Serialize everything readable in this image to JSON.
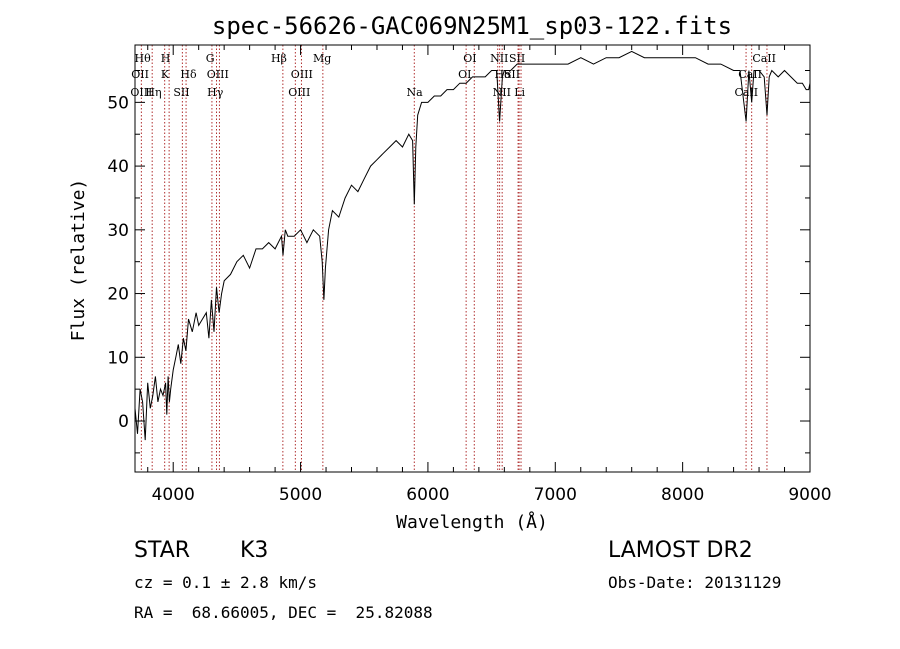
{
  "chart_data": {
    "type": "line",
    "title": "spec-56626-GAC069N25M1_sp03-122.fits",
    "xlabel": "Wavelength (Å)",
    "ylabel": "Flux (relative)",
    "xlim": [
      3700,
      9000
    ],
    "ylim": [
      -8,
      59
    ],
    "xticks": [
      4000,
      5000,
      6000,
      7000,
      8000,
      9000
    ],
    "yticks": [
      0,
      10,
      20,
      30,
      40,
      50
    ],
    "grid": false,
    "series": [
      {
        "x": [
          3700,
          3720,
          3740,
          3760,
          3780,
          3800,
          3820,
          3840,
          3860,
          3880,
          3900,
          3920,
          3940,
          3950,
          3960,
          3970,
          3980,
          4000,
          4020,
          4040,
          4060,
          4080,
          4100,
          4120,
          4150,
          4180,
          4200,
          4230,
          4260,
          4280,
          4300,
          4320,
          4340,
          4360,
          4380,
          4400,
          4450,
          4500,
          4550,
          4600,
          4650,
          4700,
          4750,
          4800,
          4850,
          4862,
          4880,
          4900,
          4950,
          5000,
          5050,
          5100,
          5150,
          5170,
          5183,
          5195,
          5220,
          5250,
          5300,
          5350,
          5400,
          5450,
          5500,
          5550,
          5600,
          5650,
          5700,
          5750,
          5800,
          5850,
          5880,
          5893,
          5905,
          5920,
          5950,
          6000,
          6050,
          6100,
          6150,
          6200,
          6250,
          6300,
          6350,
          6400,
          6450,
          6500,
          6540,
          6563,
          6585,
          6600,
          6650,
          6700,
          6750,
          6800,
          6850,
          6900,
          6950,
          7000,
          7100,
          7200,
          7300,
          7400,
          7500,
          7600,
          7700,
          7800,
          7900,
          8000,
          8100,
          8200,
          8300,
          8400,
          8450,
          8498,
          8520,
          8542,
          8560,
          8600,
          8640,
          8662,
          8680,
          8700,
          8750,
          8800,
          8850,
          8900,
          8940,
          8970,
          8990,
          9000
        ],
        "y": [
          2,
          -2,
          5,
          3,
          -3,
          6,
          2,
          4,
          7,
          3,
          5,
          4,
          6,
          1,
          7,
          3,
          5,
          8,
          10,
          12,
          9,
          13,
          11,
          16,
          14,
          17,
          15,
          16,
          17,
          13,
          19,
          14,
          21,
          17,
          20,
          22,
          23,
          25,
          26,
          24,
          27,
          27,
          28,
          27,
          29,
          26,
          30,
          29,
          29,
          30,
          28,
          30,
          29,
          25,
          19,
          24,
          30,
          33,
          32,
          35,
          37,
          36,
          38,
          40,
          41,
          42,
          43,
          44,
          43,
          45,
          44,
          34,
          43,
          48,
          50,
          50,
          51,
          51,
          52,
          52,
          53,
          53,
          54,
          54,
          54,
          55,
          55,
          47,
          54,
          55,
          55,
          56,
          56,
          56,
          56,
          56,
          56,
          56,
          56,
          57,
          56,
          57,
          57,
          58,
          57,
          57,
          57,
          57,
          57,
          56,
          56,
          55,
          55,
          47,
          55,
          50,
          55,
          55,
          54,
          48,
          54,
          55,
          54,
          55,
          54,
          53,
          53,
          52,
          52,
          53
        ]
      }
    ],
    "line_markers": [
      {
        "w": 3750,
        "top": [
          "Hθ"
        ],
        "bot": [
          "OII",
          "OIII"
        ]
      },
      {
        "w": 3835,
        "top": [
          "Hη"
        ],
        "bot": []
      },
      {
        "w": 3933,
        "top": [
          "K"
        ],
        "bot": []
      },
      {
        "w": 3968,
        "top": [
          "H"
        ],
        "bot": []
      },
      {
        "w": 4072,
        "top": [
          "SII"
        ],
        "bot": []
      },
      {
        "w": 4101,
        "top": [
          "Hδ"
        ],
        "bot": []
      },
      {
        "w": 4304,
        "top": [
          "G"
        ],
        "bot": []
      },
      {
        "w": 4340,
        "top": [
          "Hγ"
        ],
        "bot": []
      },
      {
        "w": 4363,
        "top": [
          "OIII"
        ],
        "bot": []
      },
      {
        "w": 4861,
        "top": [
          "Hβ"
        ],
        "bot": []
      },
      {
        "w": 4959,
        "top": [
          "OIII"
        ],
        "bot": []
      },
      {
        "w": 5007,
        "top": [
          "OIII"
        ],
        "bot": []
      },
      {
        "w": 5175,
        "top": [
          "Mg"
        ],
        "bot": []
      },
      {
        "w": 5893,
        "top": [
          "Na"
        ],
        "bot": []
      },
      {
        "w": 6300,
        "top": [
          "OI"
        ],
        "bot": []
      },
      {
        "w": 6364,
        "top": [
          "OI"
        ],
        "bot": []
      },
      {
        "w": 6548,
        "top": [
          "NII"
        ],
        "bot": []
      },
      {
        "w": 6563,
        "top": [
          "Hα"
        ],
        "bot": []
      },
      {
        "w": 6583,
        "top": [
          "NII"
        ],
        "bot": []
      },
      {
        "w": 6708,
        "top": [
          "Li"
        ],
        "bot": []
      },
      {
        "w": 6716,
        "top": [
          "SII"
        ],
        "bot": []
      },
      {
        "w": 6731,
        "top": [
          "SII"
        ],
        "bot": []
      },
      {
        "w": 8498,
        "top": [
          "CaII"
        ],
        "bot": []
      },
      {
        "w": 8542,
        "top": [
          "CaII"
        ],
        "bot": []
      },
      {
        "w": 8662,
        "top": [
          "CaII"
        ],
        "bot": []
      }
    ],
    "marker_labels": [
      {
        "w": 3760,
        "row": 1,
        "text": "Hθ"
      },
      {
        "w": 3940,
        "row": 1,
        "text": "H"
      },
      {
        "w": 4290,
        "row": 1,
        "text": "G"
      },
      {
        "w": 4830,
        "row": 1,
        "text": "Hβ"
      },
      {
        "w": 5170,
        "row": 1,
        "text": "Mg"
      },
      {
        "w": 6330,
        "row": 1,
        "text": "OI"
      },
      {
        "w": 6560,
        "row": 1,
        "text": "NII"
      },
      {
        "w": 6700,
        "row": 1,
        "text": "SII"
      },
      {
        "w": 8640,
        "row": 1,
        "text": "CaII"
      },
      {
        "w": 3740,
        "row": 2,
        "text": "OII"
      },
      {
        "w": 3935,
        "row": 2,
        "text": "K"
      },
      {
        "w": 4120,
        "row": 2,
        "text": "Hδ"
      },
      {
        "w": 4350,
        "row": 2,
        "text": "OIII"
      },
      {
        "w": 5010,
        "row": 2,
        "text": "OIII"
      },
      {
        "w": 6290,
        "row": 2,
        "text": "OI"
      },
      {
        "w": 6590,
        "row": 2,
        "text": "Hα"
      },
      {
        "w": 6660,
        "row": 2,
        "text": "SII"
      },
      {
        "w": 8530,
        "row": 2,
        "text": "CaII"
      },
      {
        "w": 3750,
        "row": 3,
        "text": "OIII"
      },
      {
        "w": 3845,
        "row": 3,
        "text": "Hη"
      },
      {
        "w": 4065,
        "row": 3,
        "text": "SII"
      },
      {
        "w": 4330,
        "row": 3,
        "text": "Hγ"
      },
      {
        "w": 4990,
        "row": 3,
        "text": "OIII"
      },
      {
        "w": 5895,
        "row": 3,
        "text": "Na"
      },
      {
        "w": 6580,
        "row": 3,
        "text": "NII"
      },
      {
        "w": 6720,
        "row": 3,
        "text": "Li"
      },
      {
        "w": 8500,
        "row": 3,
        "text": "CaII"
      }
    ]
  },
  "info": {
    "object_class": "STAR",
    "subclass": "K3",
    "survey": "LAMOST DR2",
    "cz": "cz = 0.1 ± 2.8 km/s",
    "obs_date": "Obs-Date: 20131129",
    "coords": "RA =  68.66005, DEC =  25.82088"
  }
}
